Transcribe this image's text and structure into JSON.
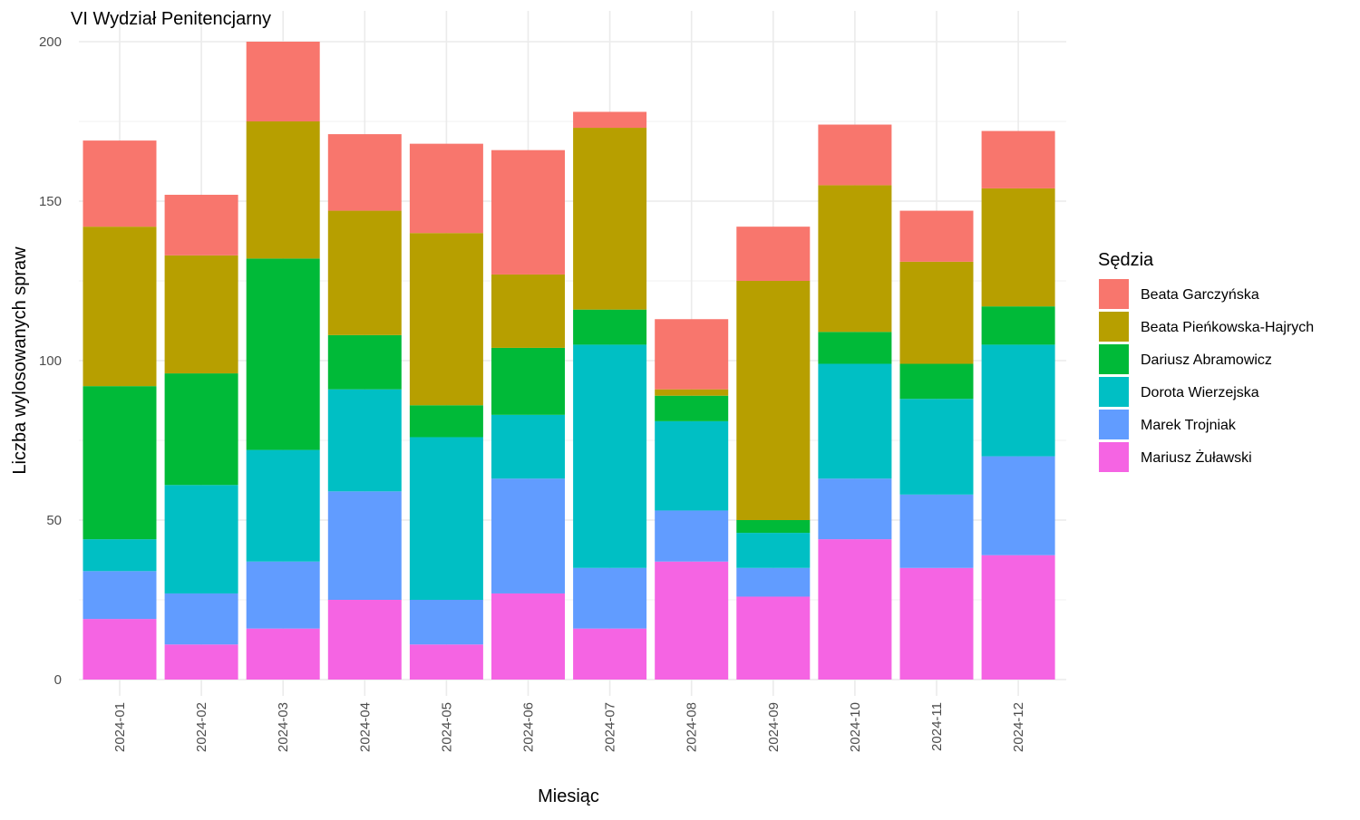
{
  "chart_data": {
    "type": "bar",
    "stacked": true,
    "title": "VI Wydział Penitencjarny",
    "xlabel": "Miesiąc",
    "ylabel": "Liczba wylosowanych spraw",
    "ylim": [
      0,
      200
    ],
    "yticks": [
      0,
      50,
      100,
      150,
      200
    ],
    "grid": true,
    "legend": {
      "title": "Sędzia",
      "placement": "right"
    },
    "categories": [
      "2024-01",
      "2024-02",
      "2024-03",
      "2024-04",
      "2024-05",
      "2024-06",
      "2024-07",
      "2024-08",
      "2024-09",
      "2024-10",
      "2024-11",
      "2024-12"
    ],
    "series": [
      {
        "name": "Beata Garczyńska",
        "color": "#F8766D",
        "values": [
          27,
          19,
          25,
          24,
          28,
          39,
          5,
          22,
          17,
          19,
          16,
          18
        ]
      },
      {
        "name": "Beata Pieńkowska-Hajrych",
        "color": "#B79F00",
        "values": [
          50,
          37,
          43,
          39,
          54,
          23,
          57,
          2,
          75,
          46,
          32,
          37
        ]
      },
      {
        "name": "Dariusz Abramowicz",
        "color": "#00BA38",
        "values": [
          48,
          35,
          60,
          17,
          10,
          21,
          11,
          8,
          4,
          10,
          11,
          12
        ]
      },
      {
        "name": "Dorota Wierzejska",
        "color": "#00BFC4",
        "values": [
          10,
          34,
          35,
          32,
          51,
          20,
          70,
          28,
          11,
          36,
          30,
          35
        ]
      },
      {
        "name": "Marek Trojniak",
        "color": "#619CFF",
        "values": [
          15,
          16,
          21,
          34,
          14,
          36,
          19,
          16,
          9,
          19,
          23,
          31
        ]
      },
      {
        "name": "Mariusz Żuławski",
        "color": "#F564E3",
        "values": [
          19,
          11,
          16,
          25,
          11,
          27,
          16,
          37,
          26,
          44,
          35,
          39
        ]
      }
    ]
  }
}
